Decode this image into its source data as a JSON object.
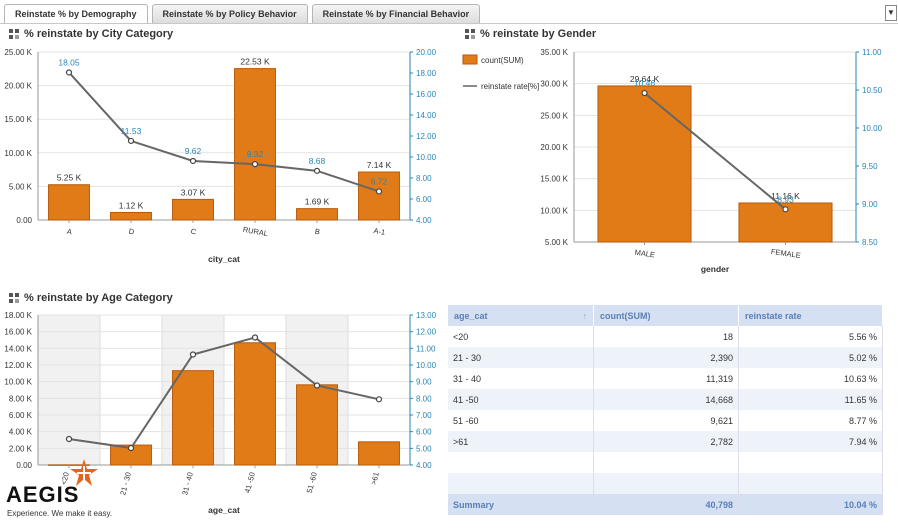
{
  "tabs": [
    {
      "label": "Reinstate % by Demography"
    },
    {
      "label": "Reinstate % by Policy Behavior"
    },
    {
      "label": "Reinstate % by Financial Behavior"
    }
  ],
  "dropdown_icon": "▼",
  "colors": {
    "bar": "#e07b18",
    "bar_dark": "#b75a0a",
    "line": "#666666",
    "accent": "#2a86b6"
  },
  "charts": {
    "city": {
      "title": "% reinstate by City Category"
    },
    "gender": {
      "title": "% reinstate by Gender",
      "legend": [
        "count(SUM)",
        "reinstate rate[%]"
      ]
    },
    "age": {
      "title": "% reinstate by Age Category"
    }
  },
  "chart_data": [
    {
      "type": "bar",
      "title": "% reinstate by City Category",
      "xlabel": "city_cat",
      "categories": [
        "A",
        "D",
        "C",
        "RURAL",
        "B",
        "A-1"
      ],
      "series": [
        {
          "name": "count(SUM)",
          "values": [
            5250,
            1120,
            3070,
            22530,
            1690,
            7140
          ],
          "labels": [
            "5.25 K",
            "1.12 K",
            "3.07 K",
            "22.53 K",
            "1.69 K",
            "7.14 K"
          ]
        },
        {
          "name": "reinstate rate[%]",
          "values": [
            18.05,
            11.53,
            9.62,
            9.32,
            8.68,
            6.72
          ],
          "labels": [
            "18.05",
            "11.53",
            "9.62",
            "9.32",
            "8.68",
            "6.72"
          ]
        }
      ],
      "left_ticks": [
        "0.00",
        "5.00 K",
        "10.00 K",
        "15.00 K",
        "20.00 K",
        "25.00 K"
      ],
      "right_ticks": [
        "4.00",
        "6.00",
        "8.00",
        "10.00",
        "12.00",
        "14.00",
        "16.00",
        "18.00",
        "20.00"
      ],
      "ylim": [
        0,
        25000
      ],
      "y2lim": [
        4,
        20
      ]
    },
    {
      "type": "bar",
      "title": "% reinstate by Gender",
      "xlabel": "gender",
      "categories": [
        "MALE",
        "FEMALE"
      ],
      "series": [
        {
          "name": "count(SUM)",
          "values": [
            29640,
            11160
          ],
          "labels": [
            "29.64 K",
            "11.16 K"
          ]
        },
        {
          "name": "reinstate rate[%]",
          "values": [
            10.46,
            8.93
          ],
          "labels": [
            "10.46",
            "8.93"
          ]
        }
      ],
      "left_ticks": [
        "5.00 K",
        "10.00 K",
        "15.00 K",
        "20.00 K",
        "25.00 K",
        "30.00 K",
        "35.00 K"
      ],
      "right_ticks": [
        "8.50",
        "9.00",
        "9.50",
        "10.00",
        "10.50",
        "11.00"
      ],
      "ylim": [
        5000,
        35000
      ],
      "y2lim": [
        8.5,
        11
      ]
    },
    {
      "type": "bar",
      "title": "% reinstate by Age Category",
      "xlabel": "age_cat",
      "categories": [
        "<20",
        "21 - 30",
        "31 - 40",
        "41 -50",
        "51 -60",
        ">61"
      ],
      "series": [
        {
          "name": "count(SUM)",
          "values": [
            18,
            2390,
            11319,
            14668,
            9621,
            2782
          ]
        },
        {
          "name": "reinstate rate[%]",
          "values": [
            5.56,
            5.02,
            10.63,
            11.65,
            8.77,
            7.94
          ]
        }
      ],
      "left_ticks": [
        "0.00",
        "2.00 K",
        "4.00 K",
        "6.00 K",
        "8.00 K",
        "10.00 K",
        "12.00 K",
        "14.00 K",
        "16.00 K",
        "18.00 K"
      ],
      "right_ticks": [
        "4.00",
        "5.00",
        "6.00",
        "7.00",
        "8.00",
        "9.00",
        "10.00",
        "11.00",
        "12.00",
        "13.00"
      ],
      "ylim": [
        0,
        18000
      ],
      "y2lim": [
        4,
        13
      ]
    }
  ],
  "table": {
    "headers": [
      "age_cat",
      "count(SUM)",
      "reinstate rate"
    ],
    "sort_icon": "↑",
    "rows": [
      [
        "<20",
        "18",
        "5.56 %"
      ],
      [
        "21 - 30",
        "2,390",
        "5.02 %"
      ],
      [
        "31 - 40",
        "11,319",
        "10.63 %"
      ],
      [
        "41 -50",
        "14,668",
        "11.65 %"
      ],
      [
        "51 -60",
        "9,621",
        "8.77 %"
      ],
      [
        ">61",
        "2,782",
        "7.94 %"
      ],
      [
        "",
        "",
        ""
      ],
      [
        "",
        "",
        ""
      ]
    ],
    "summary": [
      "Summary",
      "40,798",
      "10.04 %"
    ]
  },
  "logo": {
    "name": "AEGIS",
    "tagline": "Experience. We make it easy."
  }
}
